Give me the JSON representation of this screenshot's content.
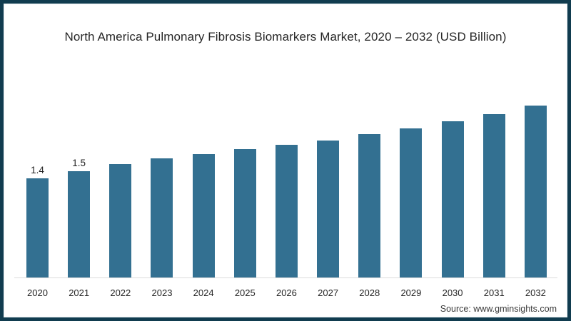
{
  "frame": {
    "border_color": "#113c4f",
    "background": "#ffffff"
  },
  "chart_data": {
    "type": "bar",
    "title": "North America Pulmonary Fibrosis Biomarkers Market, 2020 – 2032 (USD Billion)",
    "categories": [
      "2020",
      "2021",
      "2022",
      "2023",
      "2024",
      "2025",
      "2026",
      "2027",
      "2028",
      "2029",
      "2030",
      "2031",
      "2032"
    ],
    "values": [
      1.4,
      1.5,
      1.6,
      1.68,
      1.74,
      1.81,
      1.87,
      1.93,
      2.02,
      2.1,
      2.2,
      2.3,
      2.42
    ],
    "data_labels": {
      "2020": "1.4",
      "2021": "1.5"
    },
    "bar_color": "#337091",
    "axis_line_color": "#dcdcdc",
    "xlabel": "",
    "ylabel": "",
    "ylim": [
      0,
      2.6
    ],
    "grid": false,
    "legend": "none"
  },
  "footer": {
    "source_label": "Source: www.gminsights.com"
  }
}
